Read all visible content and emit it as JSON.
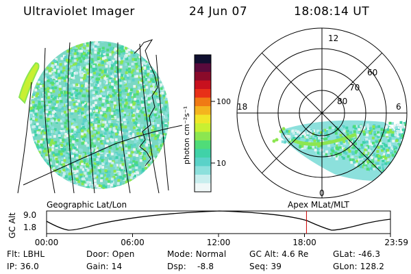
{
  "header": {
    "instrument": "Ultraviolet Imager",
    "date": "24 Jun 07",
    "time": "18:08:14 UT"
  },
  "colorbar": {
    "unit_label": "photon cm⁻²s⁻¹",
    "ticks": [
      "100",
      "10"
    ],
    "colors": [
      "#101030",
      "#5a0a3c",
      "#8a0a2a",
      "#c8101e",
      "#e83018",
      "#f07a14",
      "#f4b41e",
      "#f0e628",
      "#c8f032",
      "#8ce650",
      "#50dc78",
      "#40d2a8",
      "#5ad2c8",
      "#8ce0dc",
      "#c8eeee",
      "#f0f8f8"
    ]
  },
  "polar": {
    "rings": [
      "80",
      "70",
      "60"
    ],
    "clock": {
      "top": "12",
      "left": "18",
      "right": "6",
      "bottom": "0"
    }
  },
  "altitude_plot": {
    "ylabel": "GC Alt",
    "yticks": [
      "9.0",
      "1.8"
    ],
    "left_caption": "Geographic Lat/Lon",
    "right_caption": "Apex MLat/MLT",
    "xticks": [
      "00:00",
      "06:00",
      "12:00",
      "18:00",
      "23:59"
    ],
    "current_time_hours": 18.14
  },
  "info": {
    "rows": [
      [
        "Flt: LBHL",
        "Door: Open",
        "Mode: Normal",
        "GC Alt: 4.6 Re",
        "GLat: -46.3"
      ],
      [
        "IP: 36.0",
        "Gain: 14",
        "Dsp:    -8.8",
        "Seq: 39",
        "GLon: 128.2"
      ]
    ]
  }
}
